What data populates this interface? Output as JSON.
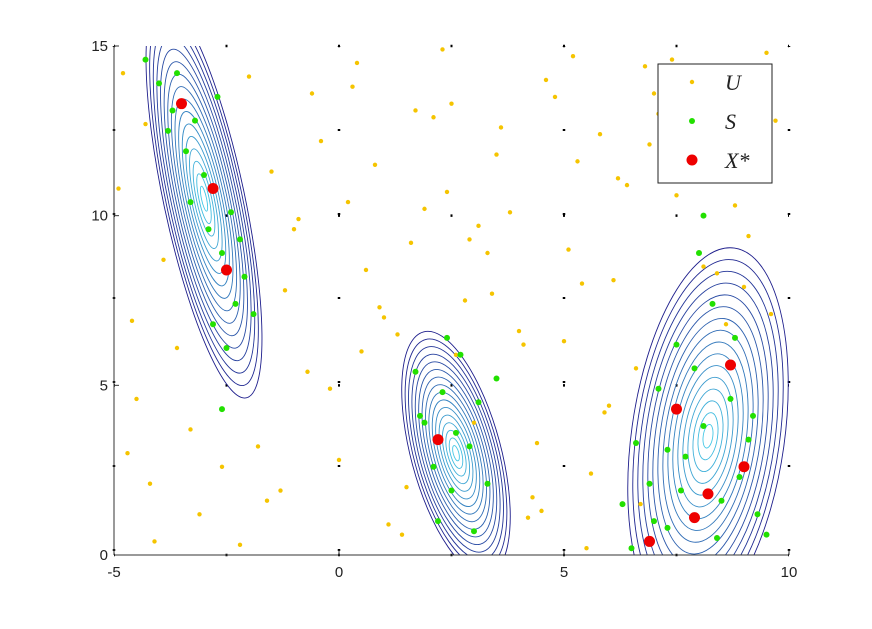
{
  "chart_data": {
    "type": "scatter",
    "xlim": [
      -5,
      10
    ],
    "ylim": [
      0,
      15
    ],
    "xticks": [
      -5,
      0,
      5,
      10
    ],
    "yticks": [
      0,
      5,
      10,
      15
    ],
    "grid": true,
    "legend": "upper right",
    "contours": [
      {
        "center": [
          -3.0,
          10.5
        ],
        "rx": 0.9,
        "ry": 6.0,
        "angle": -12
      },
      {
        "center": [
          2.6,
          3.0
        ],
        "rx": 1.0,
        "ry": 3.7,
        "angle": -15
      },
      {
        "center": [
          8.2,
          3.5
        ],
        "rx": 1.7,
        "ry": 5.6,
        "angle": 8
      }
    ],
    "series": [
      {
        "name": "U",
        "color": "#f5c400",
        "x": [
          -4.8,
          -4.2,
          -3.9,
          -1.5,
          -0.7,
          0.3,
          1.1,
          1.9,
          2.8,
          3.6,
          4.4,
          5.2,
          6.1,
          6.9,
          7.7,
          8.6,
          9.4,
          -4.5,
          -3.1,
          -2.0,
          -1.0,
          0.0,
          0.9,
          1.7,
          2.6,
          3.5,
          4.3,
          5.1,
          5.9,
          6.8,
          7.5,
          9.0,
          9.7,
          -4.9,
          -3.6,
          -1.8,
          -0.4,
          0.6,
          1.4,
          2.3,
          3.1,
          4.0,
          4.8,
          5.6,
          6.4,
          7.2,
          8.1,
          9.3,
          -4.1,
          -2.6,
          -1.2,
          -0.2,
          0.8,
          1.6,
          2.5,
          3.3,
          4.2,
          5.0,
          5.8,
          6.6,
          7.4,
          8.8,
          9.6,
          -4.6,
          -3.3,
          -1.6,
          -0.9,
          0.4,
          1.3,
          2.1,
          3.0,
          3.8,
          4.6,
          5.4,
          6.2,
          7.0,
          7.9,
          9.1,
          -4.3,
          -2.2,
          -0.6,
          0.5,
          1.5,
          2.4,
          3.4,
          4.5,
          5.3,
          6.0,
          7.1,
          8.4,
          9.5,
          -4.7,
          -1.3,
          0.2,
          1.0,
          2.9,
          4.1,
          5.5,
          6.7,
          8.9
        ],
        "values": [
          14.2,
          2.1,
          8.7,
          11.3,
          5.4,
          13.8,
          0.9,
          10.2,
          7.5,
          12.6,
          3.3,
          14.7,
          8.1,
          12.1,
          13.2,
          6.8,
          11.7,
          4.6,
          1.2,
          14.1,
          9.6,
          2.8,
          7.3,
          13.1,
          5.9,
          11.8,
          1.7,
          9.0,
          4.2,
          14.4,
          10.6,
          7.9,
          12.8,
          10.8,
          6.1,
          3.2,
          12.2,
          8.4,
          0.6,
          14.9,
          9.7,
          6.6,
          13.5,
          2.4,
          10.9,
          11.9,
          8.5,
          13.9,
          0.4,
          2.6,
          7.8,
          4.9,
          11.5,
          9.2,
          13.3,
          8.9,
          1.1,
          6.3,
          12.4,
          5.5,
          14.6,
          10.3,
          7.1,
          6.9,
          3.7,
          1.6,
          9.9,
          14.5,
          6.5,
          12.9,
          3.9,
          10.1,
          14.0,
          8.0,
          11.1,
          13.6,
          12.3,
          9.4,
          12.7,
          0.3,
          13.6,
          6.0,
          2.0,
          10.7,
          7.7,
          1.3,
          11.6,
          4.4,
          13.0,
          8.3,
          14.8,
          3.0,
          1.9,
          10.4,
          7.0,
          9.3,
          6.2,
          0.2,
          1.5,
          14.3
        ]
      },
      {
        "name": "S",
        "color": "#22e000",
        "x": [
          -4.3,
          -4.0,
          -3.8,
          -3.6,
          -3.4,
          -3.2,
          -3.0,
          -2.9,
          -2.7,
          -2.6,
          -2.4,
          -2.3,
          -2.1,
          -3.7,
          -3.3,
          -2.8,
          -2.5,
          -2.2,
          -1.9,
          -2.6,
          1.7,
          1.9,
          2.1,
          2.3,
          2.5,
          2.7,
          2.9,
          3.1,
          3.3,
          2.2,
          2.6,
          3.0,
          1.8,
          2.4,
          3.5,
          6.3,
          6.6,
          6.9,
          7.1,
          7.3,
          7.5,
          7.7,
          7.9,
          8.1,
          8.3,
          8.5,
          8.7,
          8.9,
          9.1,
          9.3,
          9.5,
          6.5,
          7.0,
          7.6,
          8.0,
          8.4,
          8.8,
          9.2,
          7.3,
          8.1
        ],
        "values": [
          14.6,
          13.9,
          12.5,
          14.2,
          11.9,
          12.8,
          11.2,
          9.6,
          13.5,
          8.9,
          10.1,
          7.4,
          8.2,
          13.1,
          10.4,
          6.8,
          6.1,
          9.3,
          7.1,
          4.3,
          5.4,
          3.9,
          2.6,
          4.8,
          1.9,
          5.9,
          3.2,
          4.5,
          2.1,
          1.0,
          3.6,
          0.7,
          4.1,
          6.4,
          5.2,
          1.5,
          3.3,
          2.1,
          4.9,
          0.8,
          6.2,
          2.9,
          5.5,
          3.8,
          7.4,
          1.6,
          4.6,
          2.3,
          3.4,
          1.2,
          0.6,
          0.2,
          1.0,
          1.9,
          8.9,
          0.5,
          6.4,
          4.1,
          3.1,
          10.0
        ]
      },
      {
        "name": "X*",
        "color": "#ee0000",
        "x": [
          -3.5,
          -2.8,
          -2.5,
          2.2,
          8.7,
          7.5,
          9.0,
          8.2,
          7.9,
          6.9
        ],
        "values": [
          13.3,
          10.8,
          8.4,
          3.4,
          5.6,
          4.3,
          2.6,
          1.8,
          1.1,
          0.4
        ]
      }
    ]
  }
}
